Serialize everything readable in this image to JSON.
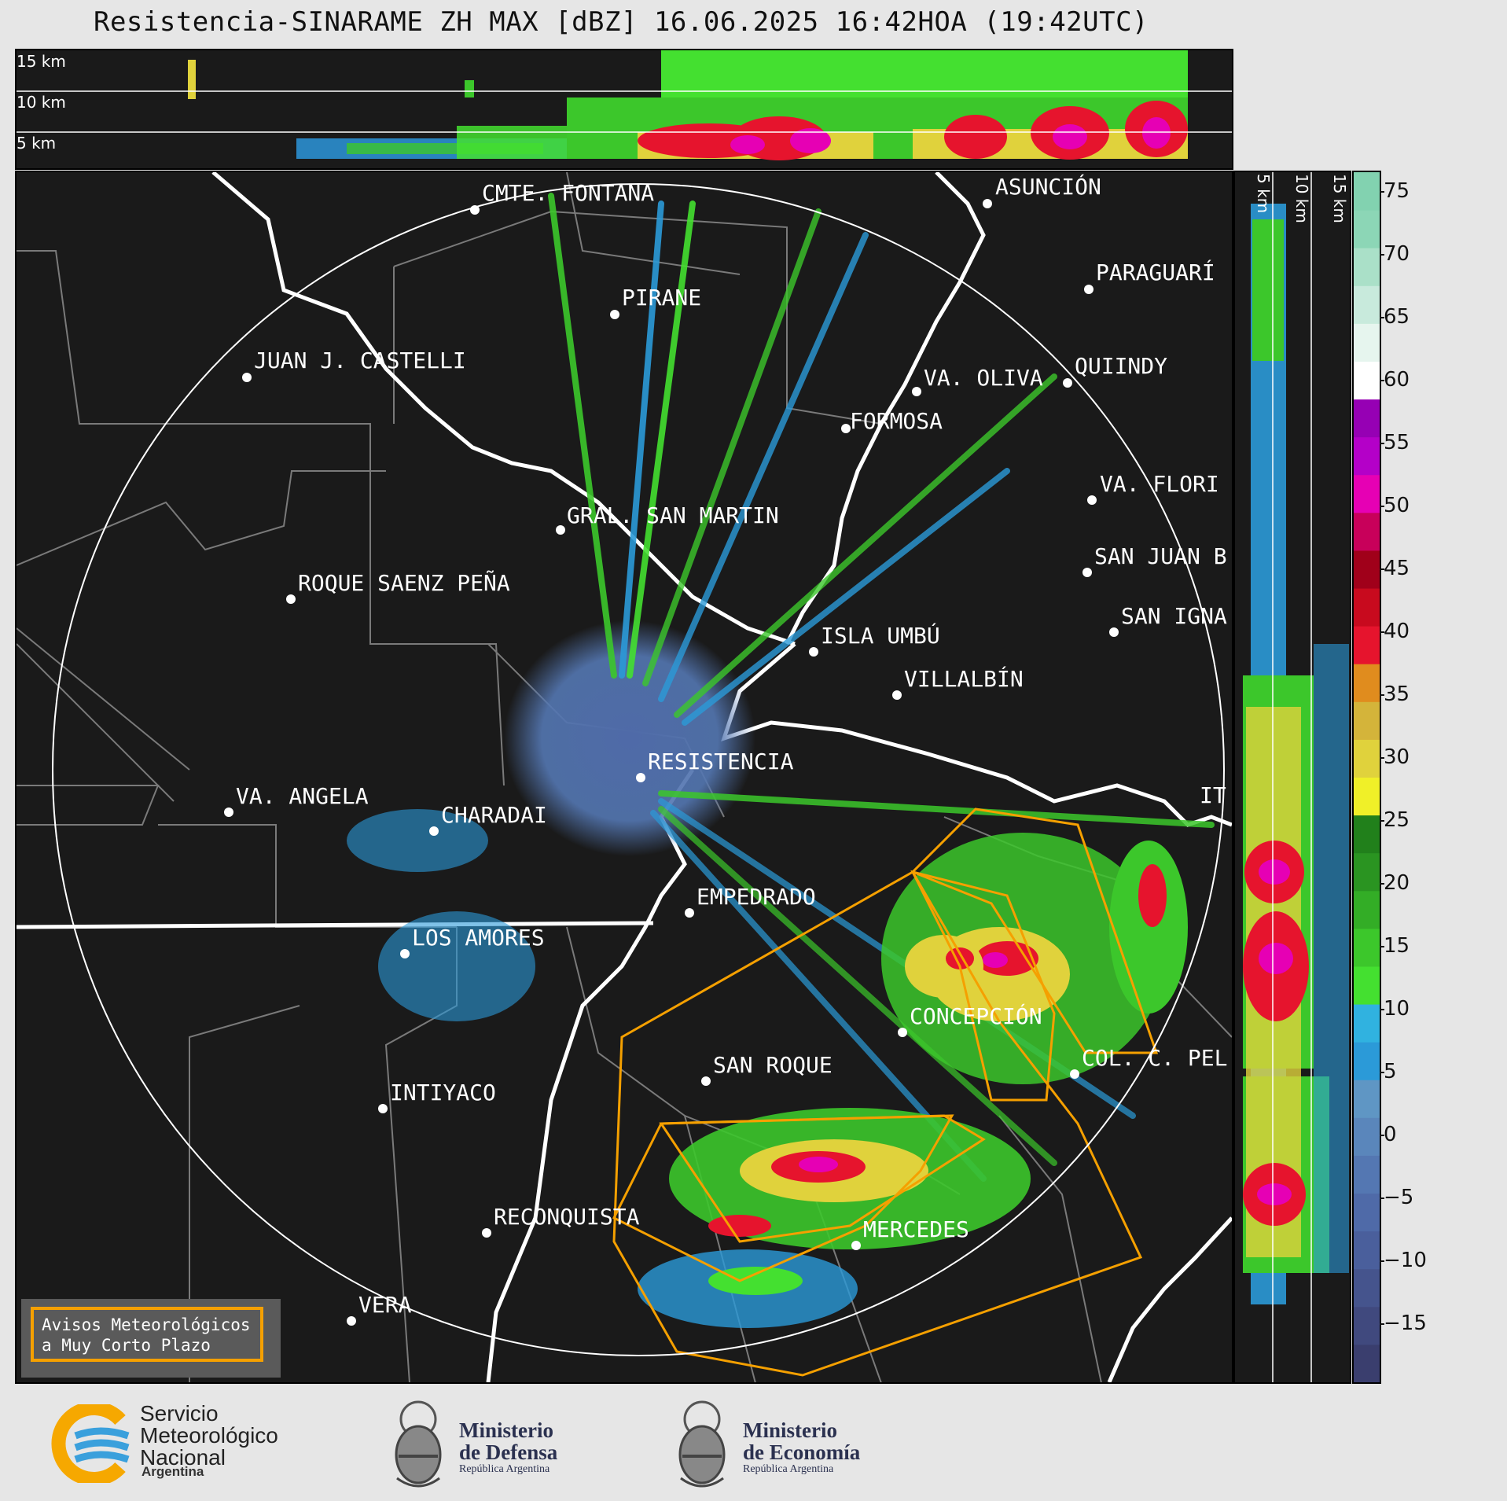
{
  "title": "Resistencia-SINARAME ZH MAX [dBZ] 16.06.2025 16:42HOA (19:42UTC)",
  "top_panel_labels": [
    "15 km",
    "10 km",
    "5 km"
  ],
  "side_panel_labels": [
    "5 km",
    "10 km",
    "15 km"
  ],
  "colorbar": {
    "ticks": [
      "75",
      "70",
      "65",
      "60",
      "55",
      "50",
      "45",
      "40",
      "35",
      "30",
      "25",
      "20",
      "15",
      "10",
      "5",
      "0",
      "−5",
      "−10",
      "−15"
    ],
    "range": [
      -20,
      77
    ],
    "colors": [
      "#3a3e6e",
      "#40497e",
      "#45548d",
      "#4a5f9c",
      "#4f6aa8",
      "#5477b2",
      "#5a86bb",
      "#5f96c4",
      "#2b9ad8",
      "#30b2e0",
      "#44e030",
      "#3cc72b",
      "#33ad26",
      "#2a9421",
      "#21801b",
      "#f0f028",
      "#e0d23c",
      "#d4b43a",
      "#e08c1e",
      "#e6142d",
      "#c80a1e",
      "#a0001a",
      "#c8005a",
      "#e600b4",
      "#b400c8",
      "#9600b4",
      "#ffffff",
      "#e6f5ee",
      "#c8eadc",
      "#aae0c8",
      "#8cd6b6",
      "#82d2b0"
    ]
  },
  "cities": [
    {
      "name": "CMTE. FONTANA"
    },
    {
      "name": "ASUNCIÓN"
    },
    {
      "name": "PIRANE"
    },
    {
      "name": "PARAGUARÍ"
    },
    {
      "name": "JUAN J. CASTELLI"
    },
    {
      "name": "VA. OLIVA"
    },
    {
      "name": "QUIINDY"
    },
    {
      "name": "FORMOSA"
    },
    {
      "name": "VA. FLORI"
    },
    {
      "name": "GRAL. SAN MARTIN"
    },
    {
      "name": "SAN JUAN B"
    },
    {
      "name": "ROQUE SAENZ PEÑA"
    },
    {
      "name": "SAN IGNA"
    },
    {
      "name": "ISLA UMBÚ"
    },
    {
      "name": "VILLALBÍN"
    },
    {
      "name": "RESISTENCIA"
    },
    {
      "name": "VA. ANGELA"
    },
    {
      "name": "CHARADAI"
    },
    {
      "name": "IT"
    },
    {
      "name": "EMPEDRADO"
    },
    {
      "name": "LOS AMORES"
    },
    {
      "name": "CONCEPCIÓN"
    },
    {
      "name": "COL. C. PEL"
    },
    {
      "name": "SAN ROQUE"
    },
    {
      "name": "INTIYACO"
    },
    {
      "name": "RECONQUISTA"
    },
    {
      "name": "MERCEDES"
    },
    {
      "name": "VERA"
    }
  ],
  "legend": {
    "line1": "Avisos Meteorológicos",
    "line2": "a Muy Corto Plazo"
  },
  "logos": {
    "smn": {
      "line1": "Servicio",
      "line2": "Meteorológico",
      "line3": "Nacional",
      "sub": "Argentina"
    },
    "defensa": {
      "line1": "Ministerio",
      "line2": "de Defensa",
      "sub": "República Argentina"
    },
    "economia": {
      "line1": "Ministerio",
      "line2": "de Economía",
      "sub": "República Argentina"
    }
  },
  "colors": {
    "background": "#e6e6e6",
    "panel": "#1a1a1a",
    "warning": "#f5a000",
    "border_line": "#ffffff",
    "province_line": "#7a7a7a"
  }
}
